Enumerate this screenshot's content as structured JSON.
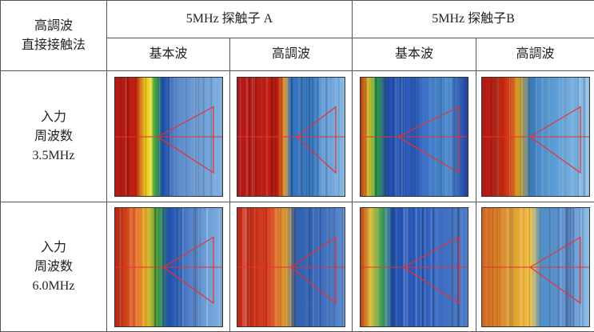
{
  "header": {
    "title_lines": [
      "高調波",
      "直接接触法"
    ],
    "groups": [
      "5MHz 探触子 A",
      "5MHz 探触子B"
    ],
    "subheaders": [
      "基本波",
      "高調波",
      "基本波",
      "高調波"
    ]
  },
  "rows": [
    {
      "label_lines": [
        "入力",
        "周波数",
        "3.5MHz"
      ]
    },
    {
      "label_lines": [
        "入力",
        "周波数",
        "6.0MHz"
      ]
    }
  ]
}
